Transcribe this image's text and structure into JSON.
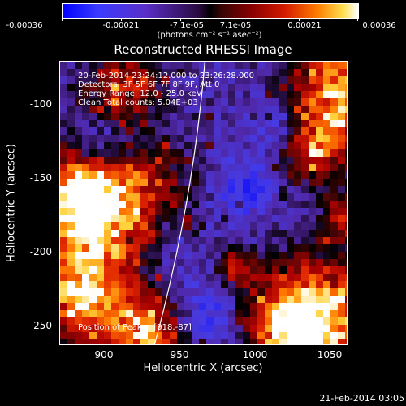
{
  "colorbar": {
    "tick_labels": [
      "-0.00036",
      "-0.00021",
      "-7.1e-05",
      "7.1e-05",
      "0.00021",
      "0.00036"
    ],
    "units": "(photons cm⁻² s⁻¹ asec⁻²)"
  },
  "title": "Reconstructed RHESSI Image",
  "info": {
    "time_range": "20-Feb-2014 23:24:12.000 to 23:26:28.000",
    "detectors": "Detectors: 3F 5F 6F 7F 8F 9F, Att 0",
    "energy_range": "Energy Range: 12.0 - 25.0 keV",
    "clean_counts": "Clean     Total counts: 5.04E+03",
    "peak_position": "Position of Peak = [918,-87]"
  },
  "axes": {
    "xlabel": "Heliocentric X (arcsec)",
    "ylabel": "Heliocentric Y (arcsec)",
    "x_ticks": [
      "900",
      "950",
      "1000",
      "1050"
    ],
    "y_ticks": [
      "-100",
      "-150",
      "-200",
      "-250"
    ],
    "x_range": [
      868,
      1062
    ],
    "y_range": [
      -265,
      -73
    ]
  },
  "footer": {
    "date": "21-Feb-2014 03:05"
  },
  "colors": {
    "background": "#000000",
    "limb_line": "#ffffff"
  },
  "marker": {
    "x": 936,
    "y": -198
  }
}
